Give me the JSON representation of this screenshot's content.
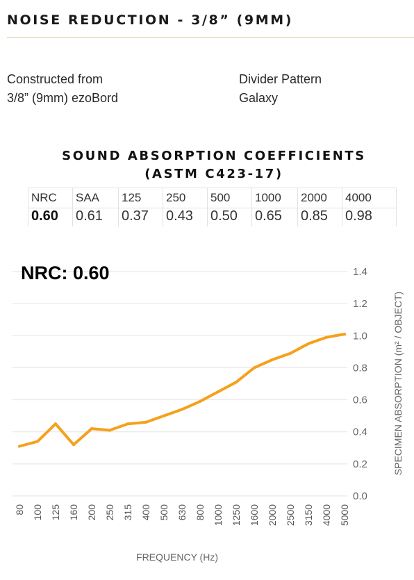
{
  "header": {
    "title": "NOISE  REDUCTION - 3/8” (9MM)",
    "rule_color": "#d8c79a"
  },
  "construction": {
    "line1": "Constructed from",
    "line2": "3/8” (9mm) ezoBord"
  },
  "divider": {
    "line1": "Divider Pattern",
    "line2": "Galaxy"
  },
  "coefficients": {
    "title_line1": "SOUND ABSORPTION COEFFICIENTS",
    "title_line2": "(ASTM C423-17)",
    "headers": [
      "NRC",
      "SAA",
      "125",
      "250",
      "500",
      "1000",
      "2000",
      "4000"
    ],
    "values": [
      "0.60",
      "0.61",
      "0.37",
      "0.43",
      "0.50",
      "0.65",
      "0.85",
      "0.98"
    ]
  },
  "nrc_label": "NRC: 0.60",
  "chart_data": {
    "type": "line",
    "xlabel": "FREQUENCY (Hz)",
    "ylabel": "SPECIMEN ABSORPTION (m² / OBJECT)",
    "ylim": [
      0,
      1.4
    ],
    "yticks": [
      "0.0",
      "0.2",
      "0.4",
      "0.6",
      "0.8",
      "1.0",
      "1.2",
      "1.4"
    ],
    "grid": true,
    "line_color": "#f5a11c",
    "categories": [
      "80",
      "100",
      "125",
      "160",
      "200",
      "250",
      "315",
      "400",
      "500",
      "630",
      "800",
      "1000",
      "1250",
      "1600",
      "2000",
      "2500",
      "3150",
      "4000",
      "5000"
    ],
    "series": [
      {
        "values": [
          0.31,
          0.34,
          0.45,
          0.32,
          0.42,
          0.41,
          0.45,
          0.46,
          0.5,
          0.54,
          0.59,
          0.65,
          0.71,
          0.8,
          0.85,
          0.89,
          0.95,
          0.99,
          1.01
        ]
      }
    ]
  }
}
